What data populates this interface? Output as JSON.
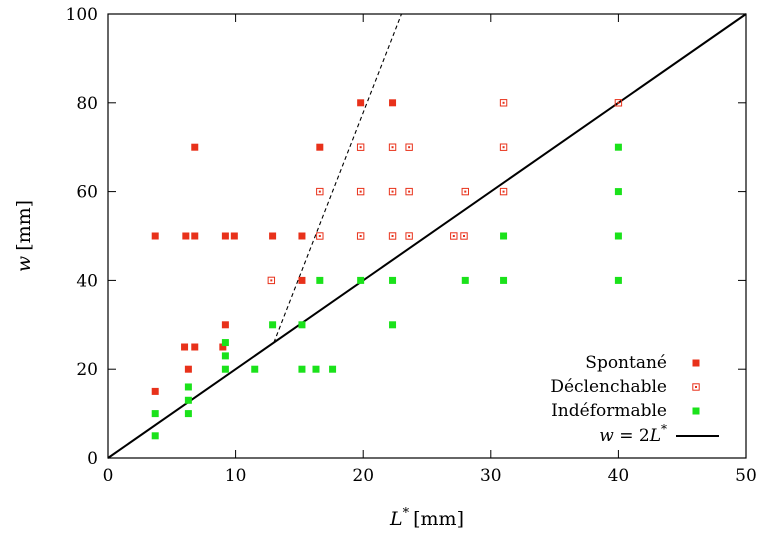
{
  "chart_data": {
    "type": "scatter",
    "xlabel": {
      "main": "L",
      "sup": "*",
      "unit": "[mm]"
    },
    "ylabel": {
      "main": "w",
      "unit": "[mm]"
    },
    "xlim": [
      0,
      50
    ],
    "ylim": [
      0,
      100
    ],
    "xticks": [
      0,
      10,
      20,
      30,
      40,
      50
    ],
    "yticks": [
      0,
      20,
      40,
      60,
      80,
      100
    ],
    "grid": false,
    "legend_position": "bottom-right",
    "series": [
      {
        "name": "Spontané",
        "marker": "filled-square",
        "color": "#e8311a",
        "points": [
          [
            3.7,
            15
          ],
          [
            3.7,
            50
          ],
          [
            6.0,
            25
          ],
          [
            6.1,
            50
          ],
          [
            6.3,
            20
          ],
          [
            6.8,
            25
          ],
          [
            6.8,
            50
          ],
          [
            6.8,
            70
          ],
          [
            9.0,
            25
          ],
          [
            9.2,
            30
          ],
          [
            9.2,
            50
          ],
          [
            9.9,
            50
          ],
          [
            12.9,
            50
          ],
          [
            15.2,
            40
          ],
          [
            15.2,
            50
          ],
          [
            16.6,
            70
          ],
          [
            19.8,
            80
          ],
          [
            22.3,
            80
          ]
        ]
      },
      {
        "name": "Déclenchable",
        "marker": "open-square-dot",
        "color": "#e8311a",
        "points": [
          [
            12.8,
            40
          ],
          [
            16.6,
            50
          ],
          [
            16.6,
            60
          ],
          [
            19.8,
            50
          ],
          [
            19.8,
            60
          ],
          [
            19.8,
            70
          ],
          [
            22.3,
            50
          ],
          [
            22.3,
            60
          ],
          [
            22.3,
            70
          ],
          [
            23.6,
            50
          ],
          [
            23.6,
            60
          ],
          [
            23.6,
            70
          ],
          [
            27.1,
            50
          ],
          [
            27.9,
            50
          ],
          [
            28.0,
            60
          ],
          [
            31.0,
            60
          ],
          [
            31.0,
            70
          ],
          [
            31.0,
            80
          ],
          [
            40.0,
            80
          ]
        ]
      },
      {
        "name": "Indéformable",
        "marker": "filled-square",
        "color": "#1ae21a",
        "points": [
          [
            3.7,
            5
          ],
          [
            3.7,
            10
          ],
          [
            6.3,
            10
          ],
          [
            6.3,
            13
          ],
          [
            6.3,
            16
          ],
          [
            9.2,
            20
          ],
          [
            9.2,
            23
          ],
          [
            9.2,
            26
          ],
          [
            11.5,
            20
          ],
          [
            12.9,
            30
          ],
          [
            15.2,
            20
          ],
          [
            15.2,
            30
          ],
          [
            16.3,
            20
          ],
          [
            16.6,
            40
          ],
          [
            17.6,
            20
          ],
          [
            19.8,
            40
          ],
          [
            22.3,
            30
          ],
          [
            22.3,
            40
          ],
          [
            28.0,
            40
          ],
          [
            31.0,
            40
          ],
          [
            31.0,
            50
          ],
          [
            40.0,
            40
          ],
          [
            40.0,
            50
          ],
          [
            40.0,
            60
          ],
          [
            40.0,
            70
          ]
        ]
      }
    ],
    "lines": [
      {
        "name": "w = 2L*",
        "label_parts": [
          "w",
          " = 2",
          "L",
          "*"
        ],
        "style": "solid",
        "color": "#000000",
        "points": [
          [
            0,
            0
          ],
          [
            50,
            100
          ]
        ]
      },
      {
        "style": "dashed",
        "color": "#000000",
        "points": [
          [
            13.0,
            26.0
          ],
          [
            23.0,
            100.0
          ]
        ]
      }
    ]
  }
}
